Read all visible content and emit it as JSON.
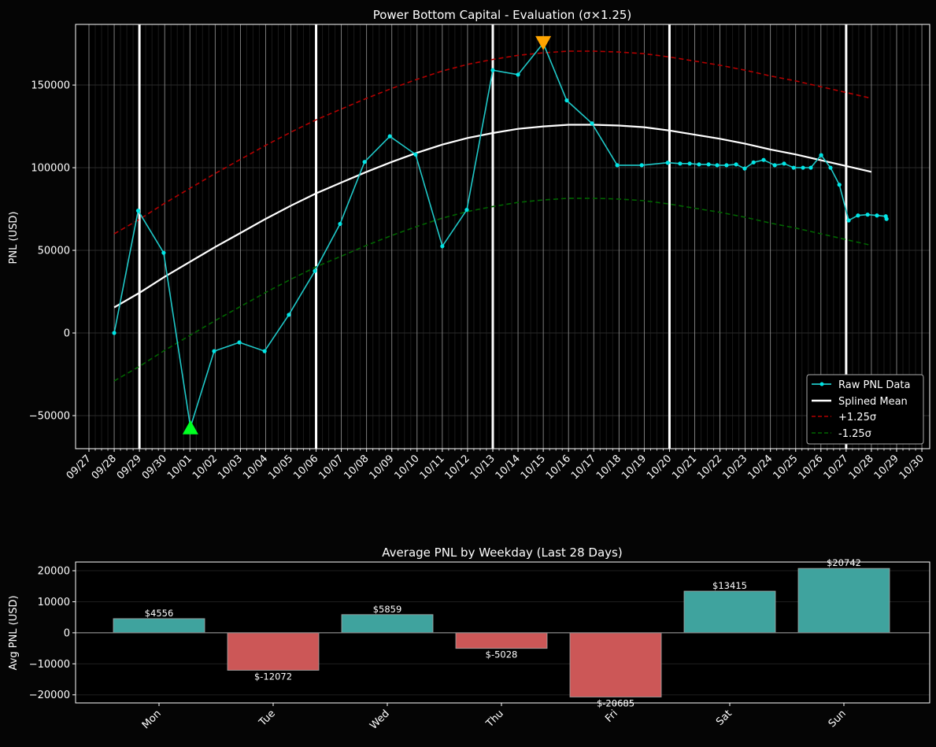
{
  "colors": {
    "raw": "#1fc8c8",
    "raw_marker": "#00e5e5",
    "mean": "#ffffff",
    "upper": "#b30000",
    "lower": "#006400",
    "pos_bar": "#3fa39e",
    "neg_bar": "#cc5757",
    "min_marker": "#00ff22",
    "max_marker": "#ffa500"
  },
  "chart_data": [
    {
      "type": "line",
      "title": "Power Bottom Capital - Evaluation (σ×1.25)",
      "xlabel": "",
      "ylabel": "PNL (USD)",
      "x_unit": "days since 09/27",
      "xlim": [
        -0.53,
        33.31
      ],
      "ylim": [
        -70000,
        186700
      ],
      "yticks": [
        -50000,
        0,
        50000,
        100000,
        150000
      ],
      "ytick_labels": [
        "−50000",
        "0",
        "50000",
        "100000",
        "150000"
      ],
      "xtick_labels": [
        "09/27",
        "09/28",
        "09/29",
        "09/30",
        "10/01",
        "10/02",
        "10/03",
        "10/04",
        "10/05",
        "10/06",
        "10/07",
        "10/08",
        "10/09",
        "10/10",
        "10/11",
        "10/12",
        "10/13",
        "10/14",
        "10/15",
        "10/16",
        "10/17",
        "10/18",
        "10/19",
        "10/20",
        "10/21",
        "10/22",
        "10/23",
        "10/24",
        "10/25",
        "10/26",
        "10/27",
        "10/28",
        "10/29",
        "10/30"
      ],
      "weekly_lines": [
        2,
        9,
        16,
        23,
        30
      ],
      "grid": true,
      "legend": {
        "placement": "lower-right",
        "entries": [
          "Raw PNL Data",
          "Splined Mean",
          "+1.25σ",
          "-1.25σ"
        ]
      },
      "sigma_band": 44500,
      "series": [
        {
          "name": "Raw PNL Data",
          "x": [
            1.0,
            1.95,
            2.96,
            4.02,
            4.96,
            5.96,
            6.96,
            7.92,
            8.95,
            9.95,
            10.92,
            11.92,
            12.94,
            14.0,
            14.97,
            16.0,
            17.0,
            18.0,
            18.93,
            19.93,
            20.93,
            21.9,
            22.93,
            23.42,
            23.8,
            24.17,
            24.55,
            24.89,
            25.26,
            25.64,
            25.98,
            26.33,
            26.73,
            27.17,
            27.54,
            27.92,
            28.29,
            28.6,
            29.01,
            29.38,
            29.73,
            30.1,
            30.47,
            30.85,
            31.22,
            31.57,
            31.6
          ],
          "y": [
            0,
            74000,
            48500,
            -57000,
            -11000,
            -5700,
            -11000,
            11000,
            37500,
            66000,
            103500,
            119000,
            108000,
            52500,
            74500,
            159000,
            156300,
            175300,
            140700,
            126800,
            101500,
            101500,
            103000,
            102500,
            102500,
            102000,
            102000,
            101500,
            101500,
            102000,
            99500,
            103200,
            104700,
            101500,
            102500,
            100000,
            100000,
            100000,
            107600,
            100000,
            89700,
            68100,
            71100,
            71600,
            71100,
            70600,
            69000
          ]
        },
        {
          "name": "Splined Mean",
          "x": [
            1,
            2,
            3,
            4,
            5,
            6,
            7,
            8,
            9,
            10,
            11,
            12,
            13,
            14,
            15,
            16,
            17,
            18,
            19,
            20,
            21,
            22,
            23,
            24,
            25,
            26,
            27,
            28,
            29,
            30,
            31
          ],
          "y": [
            15500,
            24300,
            34000,
            43000,
            52000,
            60500,
            69000,
            77000,
            84500,
            91000,
            97500,
            103500,
            109000,
            114000,
            118000,
            121000,
            123500,
            125000,
            126000,
            126000,
            125500,
            124500,
            122500,
            120000,
            117500,
            114500,
            111000,
            108000,
            104500,
            101000,
            97500
          ]
        }
      ],
      "annotations": [
        {
          "type": "min-marker",
          "x": 4.02,
          "y": -57000
        },
        {
          "type": "max-marker",
          "x": 18.0,
          "y": 175300
        }
      ]
    },
    {
      "type": "bar",
      "title": "Average PNL by Weekday (Last 28 Days)",
      "xlabel": "",
      "ylabel": "Avg PNL (USD)",
      "ylim": [
        -22600,
        22800
      ],
      "yticks": [
        -20000,
        -10000,
        0,
        10000,
        20000
      ],
      "ytick_labels": [
        "−20000",
        "−10000",
        "0",
        "10000",
        "20000"
      ],
      "categories": [
        "Mon",
        "Tue",
        "Wed",
        "Thu",
        "Fri",
        "Sat",
        "Sun"
      ],
      "values": [
        4556,
        -12072,
        5859,
        -5028,
        -20685,
        13415,
        20742
      ],
      "data_labels": [
        "$4556",
        "$-12072",
        "$5859",
        "$-5028",
        "$-20685",
        "$13415",
        "$20742"
      ]
    }
  ]
}
